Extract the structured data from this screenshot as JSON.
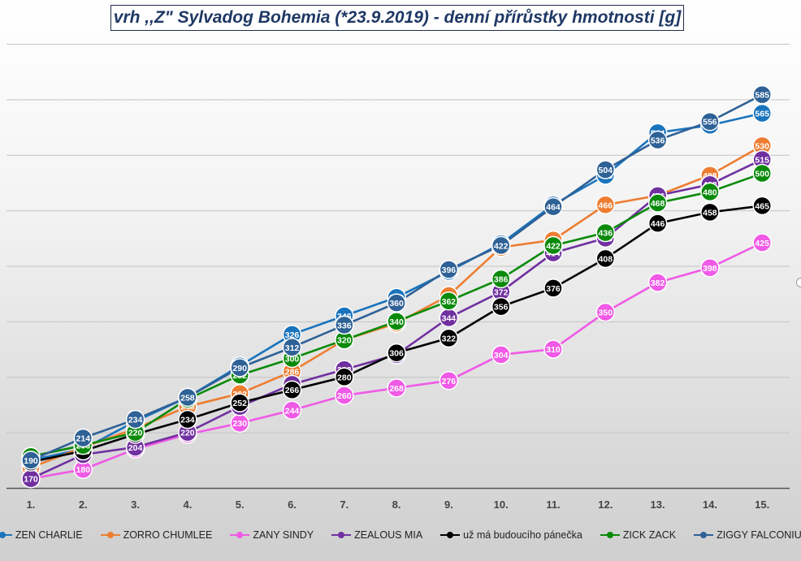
{
  "title": "vrh ,,Z\" Sylvadog Bohemia (*23.9.2019) - denní přírůstky hmotnosti [g]",
  "chart_data": {
    "type": "line",
    "title": "vrh ,,Z\" Sylvadog Bohemia (*23.9.2019) - denní přírůstky hmotnosti [g]",
    "categories": [
      "1.",
      "2.",
      "3.",
      "4.",
      "5.",
      "6.",
      "7.",
      "8.",
      "9.",
      "10.",
      "11.",
      "12.",
      "13.",
      "14.",
      "15."
    ],
    "ylim": [
      160,
      640
    ],
    "grid": true,
    "legend_position": "bottom",
    "series": [
      {
        "name": "ZEN CHARLIE",
        "color": "#1a74bc",
        "values": [
          190,
          202,
          232,
          258,
          292,
          326,
          346,
          366,
          394,
          424,
          466,
          498,
          544,
          552,
          565
        ],
        "display": [
          190,
          202,
          232,
          258,
          292,
          326,
          346,
          366,
          394,
          424,
          466,
          498,
          544,
          552,
          565
        ]
      },
      {
        "name": "ZORRO CHUMLEE",
        "color": "#ed7d31",
        "values": [
          182,
          204,
          224,
          248,
          262,
          286,
          320,
          338,
          368,
          420,
          428,
          466,
          476,
          498,
          530
        ],
        "display": [
          182,
          204,
          224,
          248,
          262,
          286,
          320,
          338,
          368,
          420,
          428,
          466,
          476,
          498,
          530
        ]
      },
      {
        "name": "ZANY SINDY",
        "color": "#f05ae6",
        "values": [
          170,
          180,
          202,
          218,
          230,
          244,
          260,
          268,
          276,
          304,
          310,
          350,
          382,
          398,
          425
        ],
        "display": [
          170,
          180,
          202,
          218,
          230,
          244,
          260,
          268,
          276,
          304,
          310,
          350,
          382,
          398,
          425
        ]
      },
      {
        "name": "ZEALOUS MIA",
        "color": "#7030a0",
        "values": [
          170,
          196,
          204,
          220,
          248,
          272,
          288,
          304,
          344,
          372,
          414,
          430,
          476,
          488,
          515
        ],
        "display": [
          170,
          196,
          204,
          220,
          248,
          272,
          288,
          304,
          344,
          372,
          414,
          430,
          476,
          488,
          515
        ]
      },
      {
        "name": "už má budoucího pánečka",
        "color": "#000000",
        "values": [
          188,
          200,
          218,
          234,
          252,
          266,
          280,
          306,
          322,
          356,
          376,
          408,
          446,
          458,
          465
        ],
        "display": [
          188,
          200,
          218,
          234,
          252,
          266,
          280,
          306,
          322,
          356,
          376,
          408,
          446,
          458,
          465
        ]
      },
      {
        "name": "ZICK ZACK",
        "color": "#0a8a0a",
        "values": [
          194,
          206,
          220,
          256,
          282,
          300,
          320,
          340,
          362,
          386,
          422,
          436,
          468,
          480,
          500
        ],
        "display": [
          194,
          206,
          220,
          256,
          282,
          300,
          320,
          340,
          362,
          386,
          422,
          436,
          468,
          480,
          500
        ]
      },
      {
        "name": "ZIGGY FALCONIUS",
        "color": "#2e6196",
        "values": [
          190,
          214,
          234,
          258,
          290,
          312,
          336,
          360,
          396,
          422,
          464,
          504,
          536,
          556,
          585
        ],
        "display": [
          190,
          214,
          234,
          258,
          290,
          312,
          336,
          360,
          396,
          422,
          464,
          504,
          536,
          556,
          585
        ]
      }
    ]
  }
}
